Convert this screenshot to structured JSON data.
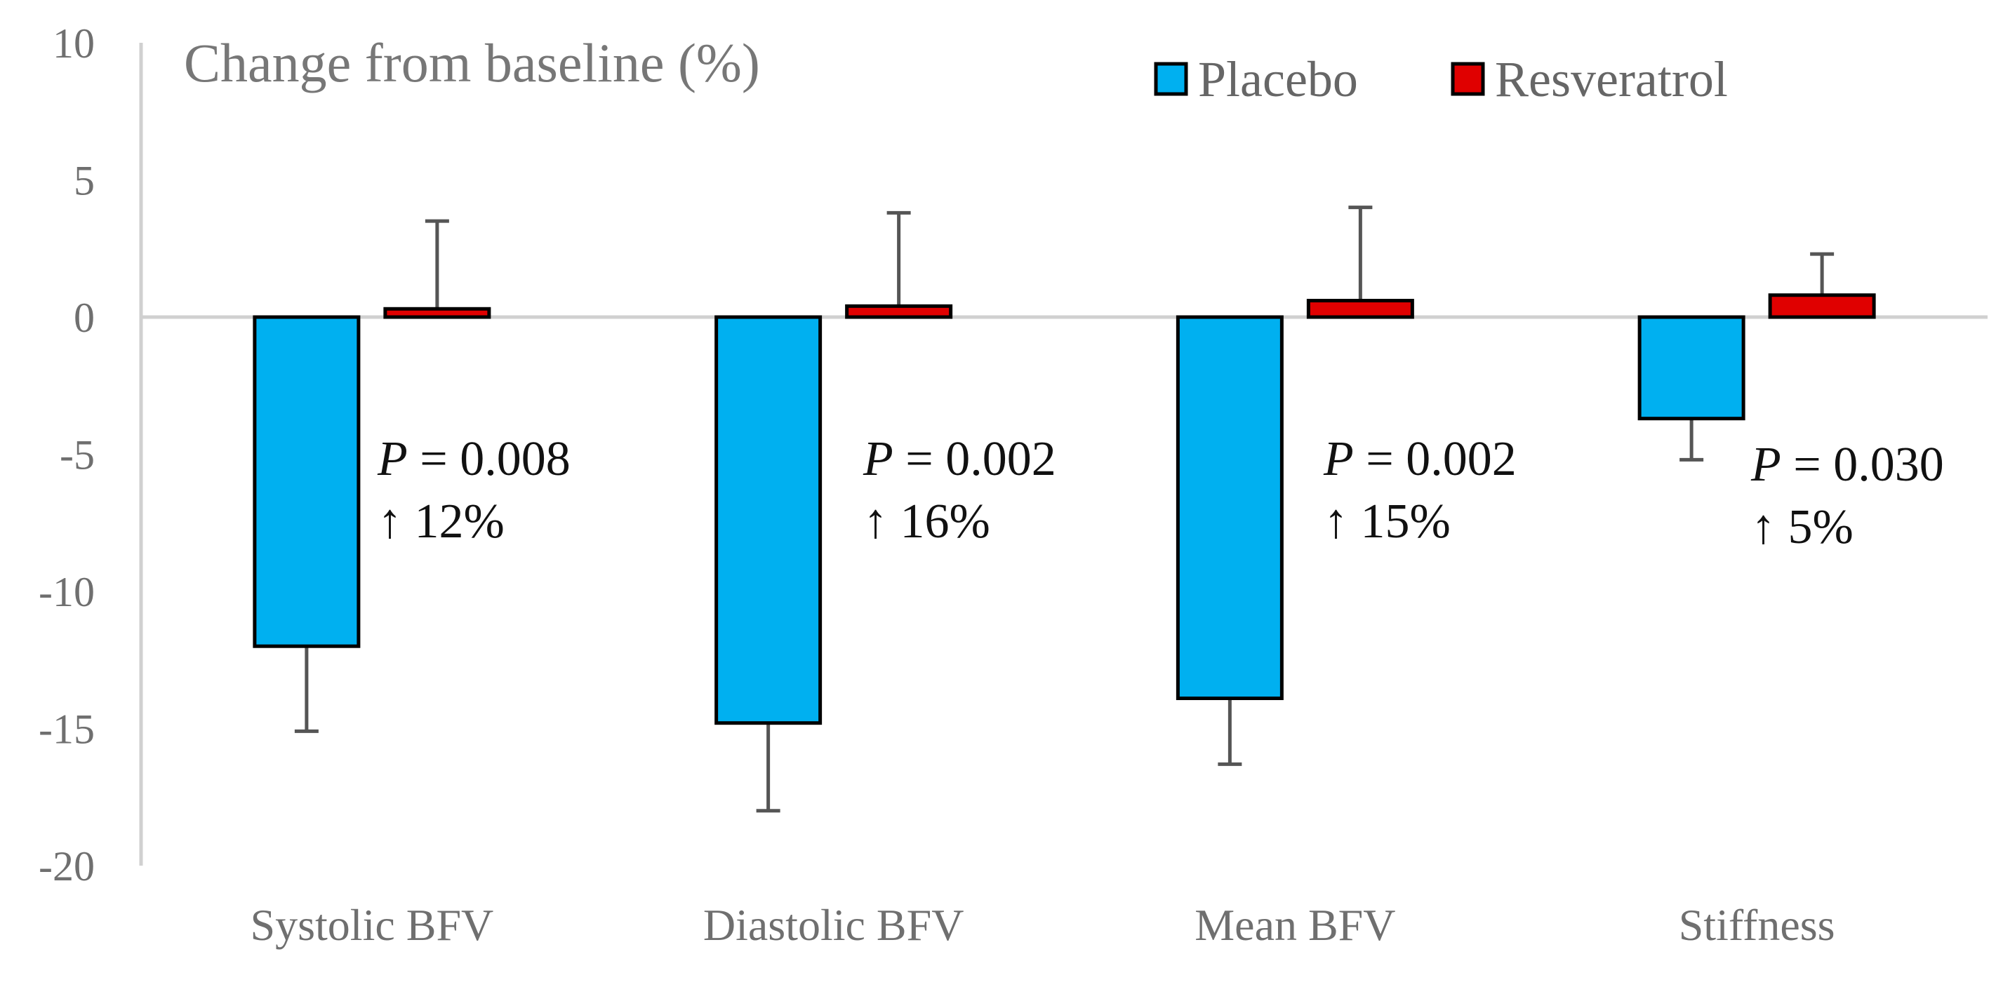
{
  "chart_data": {
    "type": "bar",
    "title": "Change from baseline (%)",
    "categories": [
      "Systolic BFV",
      "Diastolic BFV",
      "Mean BFV",
      "Stiffness"
    ],
    "series": [
      {
        "name": "Placebo",
        "color": "#00b0f0",
        "values": [
          -12.0,
          -14.8,
          -13.9,
          -3.7
        ],
        "errors": [
          3.1,
          3.2,
          2.4,
          1.5
        ]
      },
      {
        "name": "Resveratrol",
        "color": "#e00000",
        "values": [
          0.3,
          0.4,
          0.6,
          0.8
        ],
        "errors": [
          3.2,
          3.4,
          3.4,
          1.5
        ]
      }
    ],
    "ylim": [
      -20,
      10
    ],
    "yticks": [
      10,
      5,
      0,
      -5,
      -10,
      -15,
      -20
    ],
    "annotations": [
      {
        "category": "Systolic BFV",
        "p_label": "P",
        "p_value": " = 0.008",
        "change": "↑ 12%"
      },
      {
        "category": "Diastolic BFV",
        "p_label": "P",
        "p_value": " = 0.002",
        "change": "↑ 16%"
      },
      {
        "category": "Mean BFV",
        "p_label": "P",
        "p_value": " = 0.002",
        "change": "↑ 15%"
      },
      {
        "category": "Stiffness",
        "p_label": "P",
        "p_value": " = 0.030",
        "change": "↑ 5%"
      }
    ],
    "legend_position": "top-right",
    "xlabel": "",
    "ylabel": ""
  }
}
